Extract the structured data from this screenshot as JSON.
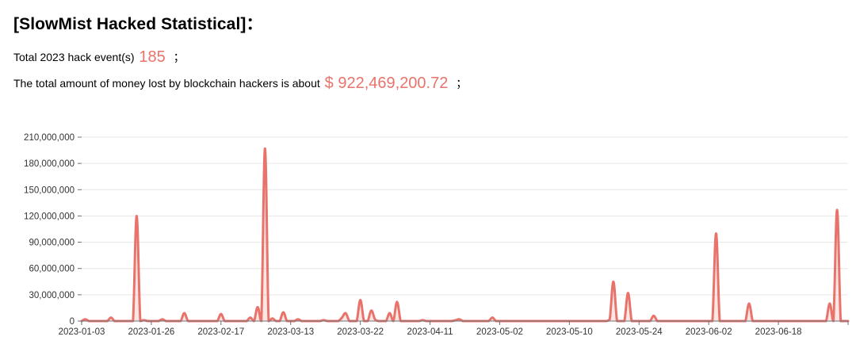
{
  "header": {
    "title": "[SlowMist Hacked Statistical]："
  },
  "stats": {
    "events_prefix": "Total 2023 hack event(s)",
    "events_count": "185",
    "events_suffix": "；",
    "amount_prefix": "The total amount of money lost by blockchain hackers is about",
    "amount_value": "$ 922,469,200.72",
    "amount_suffix": "；"
  },
  "colors": {
    "series": "#e8736a",
    "grid": "#e6e6e6",
    "axis": "#6e7079"
  },
  "chart_data": {
    "type": "area",
    "title": "",
    "xlabel": "",
    "ylabel": "",
    "ylim": [
      0,
      210000000
    ],
    "y_ticks": [
      0,
      30000000,
      60000000,
      90000000,
      120000000,
      150000000,
      180000000,
      210000000
    ],
    "y_tick_labels": [
      "0",
      "30,000,000",
      "60,000,000",
      "90,000,000",
      "120,000,000",
      "150,000,000",
      "180,000,000",
      "210,000,000"
    ],
    "x_tick_labels": [
      "2023-01-03",
      "2023-01-26",
      "2023-02-17",
      "2023-03-13",
      "2023-03-22",
      "2023-04-11",
      "2023-05-02",
      "2023-05-10",
      "2023-05-24",
      "2023-06-02",
      "2023-06-18"
    ],
    "grid": true,
    "legend": "none",
    "series": [
      {
        "values": [
          0,
          2000000,
          0,
          0,
          0,
          0,
          0,
          0,
          4000000,
          0,
          0,
          0,
          0,
          0,
          0,
          120000000,
          0,
          1000000,
          0,
          0,
          0,
          0,
          2000000,
          0,
          0,
          0,
          0,
          0,
          9000000,
          0,
          0,
          0,
          0,
          0,
          0,
          0,
          0,
          0,
          8000000,
          0,
          0,
          0,
          0,
          0,
          0,
          0,
          4000000,
          0,
          16000000,
          0,
          197000000,
          0,
          3000000,
          0,
          0,
          10000000,
          0,
          0,
          0,
          2000000,
          0,
          0,
          0,
          0,
          0,
          0,
          1000000,
          0,
          0,
          0,
          0,
          4000000,
          9000000,
          0,
          0,
          0,
          24000000,
          0,
          0,
          12000000,
          2000000,
          0,
          0,
          0,
          9000000,
          0,
          22000000,
          0,
          0,
          0,
          0,
          0,
          0,
          1000000,
          0,
          0,
          0,
          0,
          0,
          0,
          0,
          0,
          1000000,
          2000000,
          0,
          0,
          0,
          0,
          0,
          0,
          0,
          0,
          4000000,
          0,
          0,
          0,
          0,
          0,
          0,
          0,
          0,
          0,
          0,
          0,
          0,
          0,
          0,
          0,
          0,
          0,
          0,
          0,
          0,
          0,
          0,
          0,
          0,
          0,
          0,
          0,
          0,
          0,
          0,
          0,
          2000000,
          45000000,
          0,
          0,
          0,
          32000000,
          0,
          0,
          0,
          0,
          0,
          0,
          6000000,
          0,
          0,
          0,
          0,
          0,
          0,
          0,
          0,
          0,
          0,
          0,
          0,
          0,
          0,
          0,
          0,
          100000000,
          0,
          0,
          0,
          0,
          0,
          0,
          0,
          0,
          20000000,
          0,
          0,
          0,
          0,
          0,
          0,
          0,
          0,
          0,
          0,
          0,
          0,
          0,
          0,
          0,
          0,
          0,
          0,
          0,
          0,
          0,
          20000000,
          0,
          127000000,
          0,
          0,
          0
        ]
      }
    ]
  }
}
